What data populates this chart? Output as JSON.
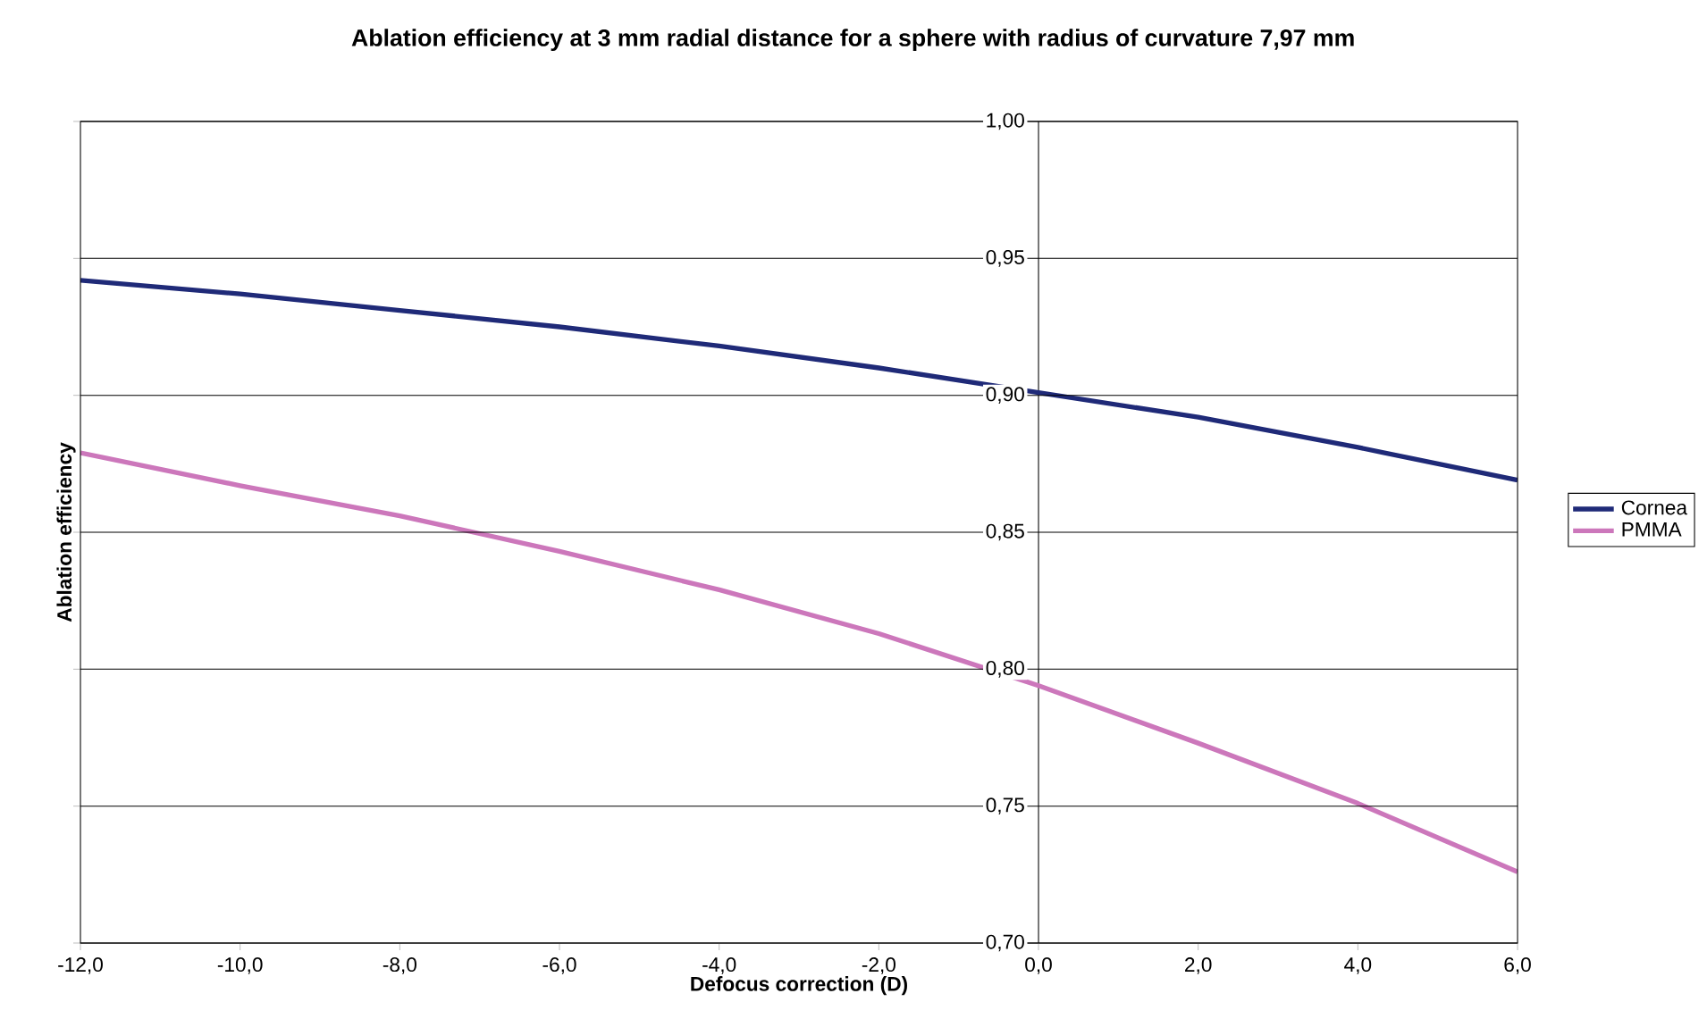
{
  "chart_data": {
    "type": "line",
    "title": "Ablation efficiency at 3 mm radial distance for a sphere with radius of curvature 7,97 mm",
    "xlabel": "Defocus correction (D)",
    "ylabel": "Ablation efficiency",
    "x": [
      -12,
      -10,
      -8,
      -6,
      -4,
      -2,
      0,
      2,
      4,
      6
    ],
    "series": [
      {
        "name": "Cornea",
        "color": "#1f2a78",
        "values": [
          0.942,
          0.937,
          0.931,
          0.925,
          0.918,
          0.91,
          0.901,
          0.892,
          0.881,
          0.869
        ]
      },
      {
        "name": "PMMA",
        "color": "#cc77bb",
        "values": [
          0.879,
          0.867,
          0.856,
          0.843,
          0.829,
          0.813,
          0.794,
          0.773,
          0.751,
          0.726
        ]
      }
    ],
    "xlim": [
      -12,
      6
    ],
    "ylim": [
      0.7,
      1.0
    ],
    "xticks": [
      {
        "value": -12,
        "label": "-12,0"
      },
      {
        "value": -10,
        "label": "-10,0"
      },
      {
        "value": -8,
        "label": "-8,0"
      },
      {
        "value": -6,
        "label": "-6,0"
      },
      {
        "value": -4,
        "label": "-4,0"
      },
      {
        "value": -2,
        "label": "-2,0"
      },
      {
        "value": 0,
        "label": "0,0"
      },
      {
        "value": 2,
        "label": "2,0"
      },
      {
        "value": 4,
        "label": "4,0"
      },
      {
        "value": 6,
        "label": "6,0"
      }
    ],
    "yticks": [
      {
        "value": 0.7,
        "label": "0,70"
      },
      {
        "value": 0.75,
        "label": "0,75"
      },
      {
        "value": 0.8,
        "label": "0,80"
      },
      {
        "value": 0.85,
        "label": "0,85"
      },
      {
        "value": 0.9,
        "label": "0,90"
      },
      {
        "value": 0.95,
        "label": "0,95"
      },
      {
        "value": 1.0,
        "label": "1,00"
      }
    ],
    "grid": "y",
    "legend": "right",
    "marker": "none",
    "line_style": "solid"
  }
}
